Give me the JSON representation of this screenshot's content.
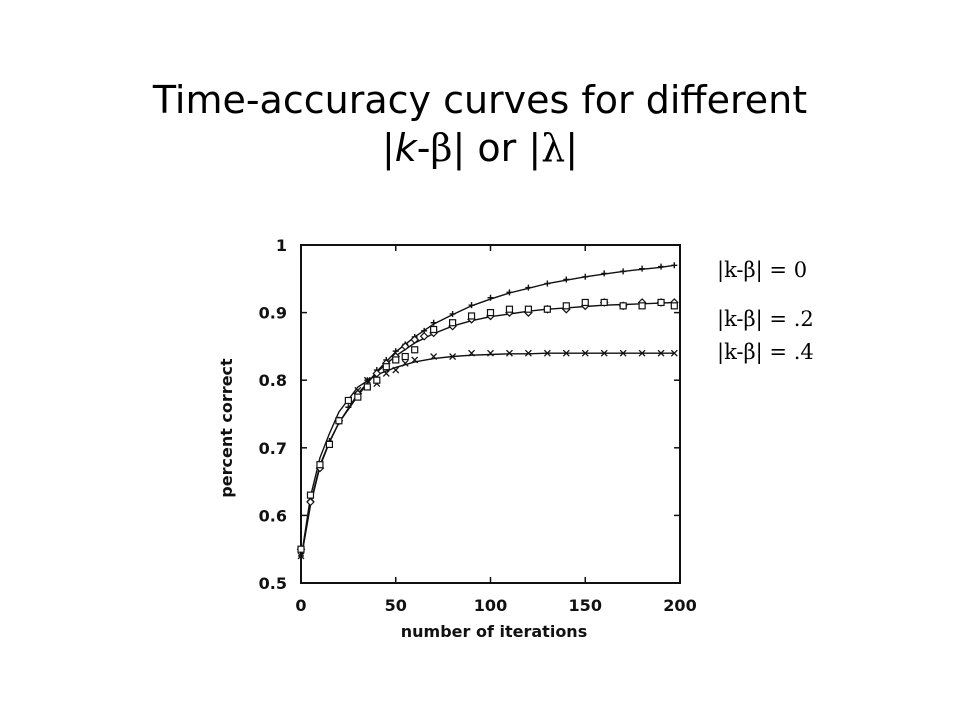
{
  "slide": {
    "title_line1": "Time-accuracy curves for different",
    "title_k": "k",
    "title_beta": "β",
    "title_or": "| or |",
    "title_lambda": "λ"
  },
  "chart_data": {
    "type": "line",
    "xlabel": "number of iterations",
    "ylabel": "percent  correct",
    "xlim": [
      0,
      200
    ],
    "ylim": [
      0.5,
      1.0
    ],
    "xticks": [
      0,
      50,
      100,
      150,
      200
    ],
    "xtick_labels": [
      "0",
      "50",
      "100",
      "150",
      "200"
    ],
    "yticks": [
      0.5,
      0.6,
      0.7,
      0.8,
      0.9,
      1.0
    ],
    "ytick_labels": [
      "0.5",
      "0.6",
      "0.7",
      "0.8",
      "0.9",
      "1"
    ],
    "grid": false,
    "legend_position": "right",
    "series": [
      {
        "name": "|k-β| = 0",
        "marker": "plus",
        "curve": {
          "x": [
            0,
            5,
            10,
            15,
            20,
            30,
            40,
            50,
            60,
            70,
            80,
            90,
            100,
            110,
            120,
            130,
            140,
            150,
            160,
            170,
            180,
            190,
            197
          ],
          "y": [
            0.535,
            0.615,
            0.672,
            0.708,
            0.737,
            0.777,
            0.813,
            0.842,
            0.864,
            0.883,
            0.897,
            0.91,
            0.92,
            0.929,
            0.936,
            0.943,
            0.948,
            0.953,
            0.957,
            0.961,
            0.964,
            0.967,
            0.97
          ]
        },
        "points": {
          "x": [
            0,
            5,
            10,
            15,
            20,
            25,
            30,
            35,
            40,
            45,
            50,
            55,
            60,
            65,
            70,
            80,
            90,
            100,
            110,
            120,
            130,
            140,
            150,
            160,
            170,
            180,
            190,
            197
          ],
          "y": [
            0.54,
            0.62,
            0.675,
            0.71,
            0.74,
            0.76,
            0.78,
            0.8,
            0.815,
            0.83,
            0.843,
            0.853,
            0.864,
            0.873,
            0.885,
            0.898,
            0.911,
            0.922,
            0.93,
            0.937,
            0.943,
            0.949,
            0.953,
            0.958,
            0.961,
            0.965,
            0.968,
            0.97
          ]
        }
      },
      {
        "name": "|k-β| = .2",
        "marker": "diamond",
        "curve": {
          "x": [
            0,
            5,
            10,
            15,
            20,
            30,
            40,
            50,
            60,
            70,
            80,
            90,
            100,
            110,
            120,
            130,
            140,
            150,
            160,
            170,
            180,
            190,
            197
          ],
          "y": [
            0.535,
            0.618,
            0.674,
            0.709,
            0.737,
            0.78,
            0.812,
            0.836,
            0.855,
            0.869,
            0.88,
            0.888,
            0.894,
            0.898,
            0.902,
            0.905,
            0.907,
            0.909,
            0.911,
            0.912,
            0.913,
            0.914,
            0.915
          ]
        },
        "points": {
          "x": [
            0,
            5,
            10,
            20,
            30,
            40,
            45,
            50,
            55,
            60,
            65,
            70,
            80,
            90,
            100,
            110,
            120,
            130,
            140,
            150,
            160,
            170,
            180,
            190,
            197
          ],
          "y": [
            0.55,
            0.62,
            0.67,
            0.74,
            0.78,
            0.81,
            0.825,
            0.835,
            0.85,
            0.86,
            0.865,
            0.87,
            0.88,
            0.89,
            0.895,
            0.9,
            0.9,
            0.905,
            0.905,
            0.91,
            0.915,
            0.91,
            0.915,
            0.915,
            0.915
          ]
        }
      },
      {
        "name": "|k-β| = .4",
        "marker": "cross",
        "curve": {
          "x": [
            0,
            5,
            10,
            15,
            20,
            30,
            40,
            50,
            60,
            70,
            80,
            90,
            100,
            110,
            120,
            130,
            140,
            150,
            160,
            170,
            180,
            190,
            197
          ],
          "y": [
            0.535,
            0.628,
            0.685,
            0.721,
            0.753,
            0.79,
            0.808,
            0.819,
            0.827,
            0.832,
            0.835,
            0.837,
            0.838,
            0.839,
            0.839,
            0.84,
            0.84,
            0.84,
            0.84,
            0.84,
            0.84,
            0.84,
            0.84
          ]
        },
        "points": {
          "x": [
            0,
            5,
            10,
            15,
            20,
            25,
            30,
            35,
            40,
            45,
            50,
            55,
            60,
            70,
            80,
            90,
            100,
            110,
            120,
            130,
            140,
            150,
            160,
            170,
            180,
            190,
            197
          ],
          "y": [
            0.54,
            0.625,
            0.675,
            0.705,
            0.74,
            0.77,
            0.785,
            0.8,
            0.795,
            0.81,
            0.815,
            0.825,
            0.83,
            0.835,
            0.835,
            0.84,
            0.84,
            0.84,
            0.84,
            0.84,
            0.84,
            0.84,
            0.84,
            0.84,
            0.84,
            0.84,
            0.84
          ]
        }
      },
      {
        "name": "",
        "marker": "square",
        "curve": null,
        "points": {
          "x": [
            0,
            5,
            10,
            15,
            20,
            25,
            30,
            35,
            40,
            45,
            50,
            55,
            60,
            70,
            80,
            90,
            100,
            110,
            120,
            130,
            140,
            150,
            160,
            170,
            180,
            190,
            197
          ],
          "y": [
            0.55,
            0.63,
            0.675,
            0.705,
            0.74,
            0.77,
            0.775,
            0.79,
            0.8,
            0.82,
            0.83,
            0.835,
            0.845,
            0.875,
            0.885,
            0.895,
            0.9,
            0.905,
            0.905,
            0.905,
            0.91,
            0.915,
            0.915,
            0.91,
            0.91,
            0.915,
            0.91
          ]
        }
      }
    ]
  }
}
